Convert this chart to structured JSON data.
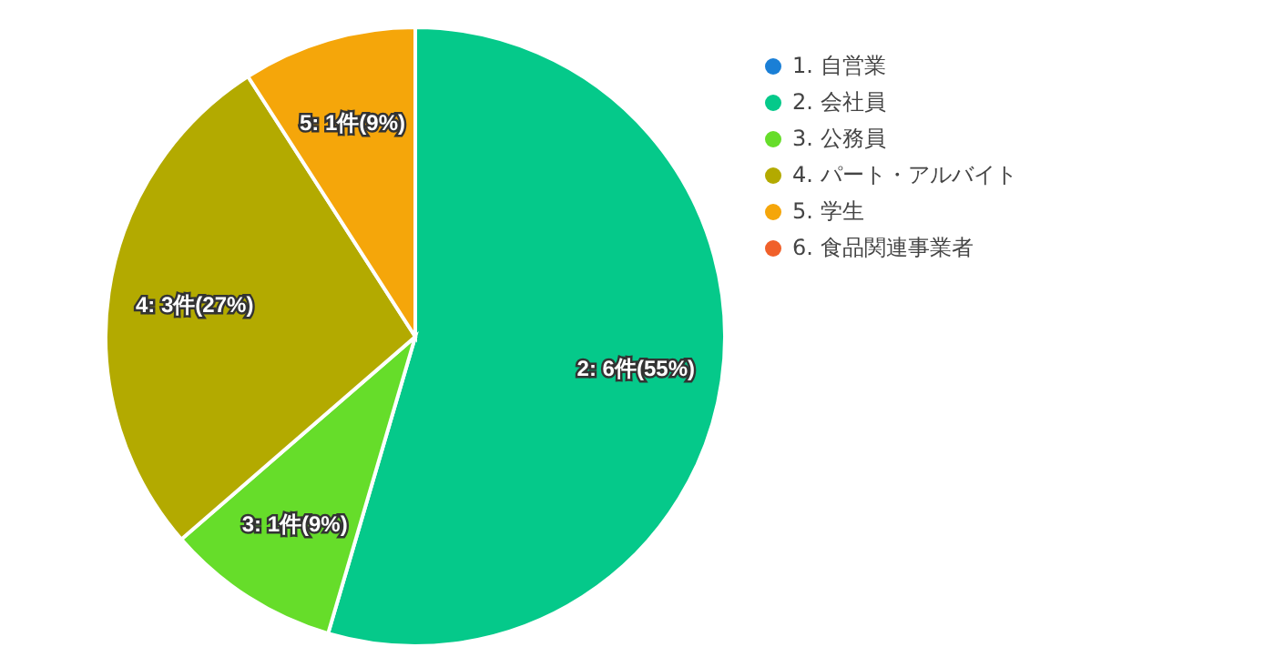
{
  "chart_data": {
    "type": "pie",
    "categories": [
      "1. 自営業",
      "2. 会社員",
      "3. 公務員",
      "4. パート・アルバイト",
      "5. 学生",
      "6. 食品関連事業者"
    ],
    "values": [
      0,
      6,
      1,
      3,
      1,
      0
    ],
    "colors": [
      "#1a7fd6",
      "#05c98a",
      "#66dd2a",
      "#b3aa00",
      "#f5a60a",
      "#f0602a"
    ],
    "value_labels": [
      null,
      "2: 6件(55%)",
      "3: 1件(9%)",
      "4: 3件(27%)",
      "5: 1件(9%)",
      null
    ],
    "legend": "top right"
  }
}
